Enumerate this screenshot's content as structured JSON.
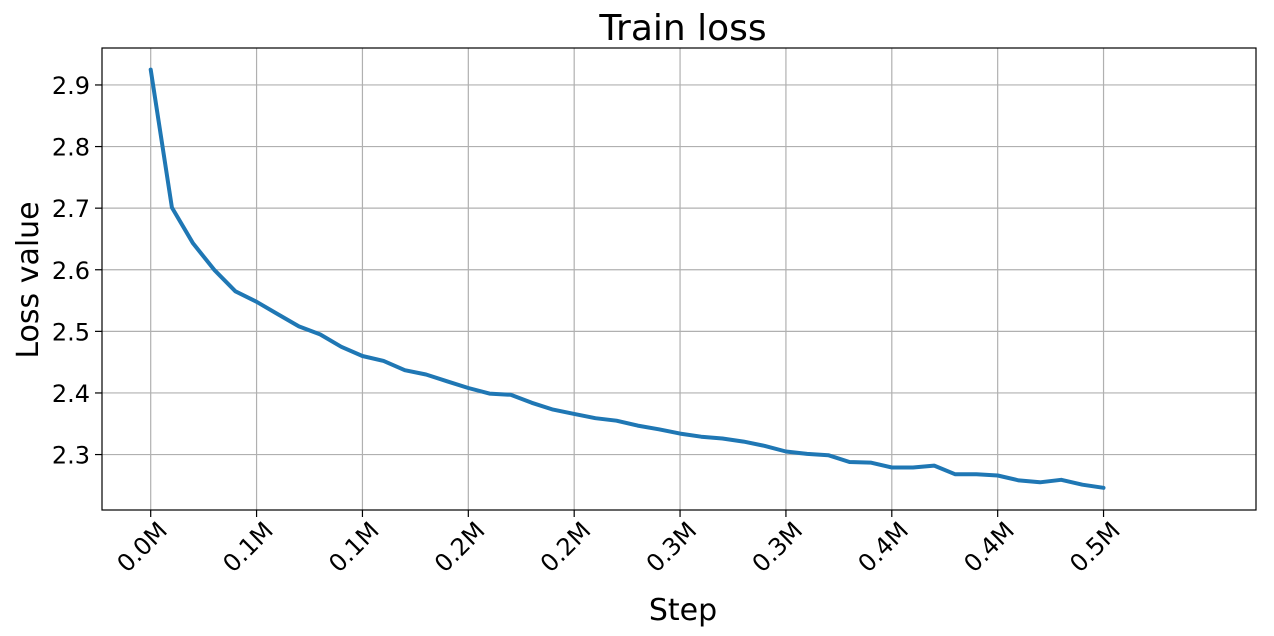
{
  "chart_data": {
    "type": "line",
    "title": "Train loss",
    "xlabel": "Step",
    "ylabel": "Loss value",
    "grid": true,
    "xlim": [
      -23000,
      522000
    ],
    "ylim": [
      2.21,
      2.96
    ],
    "x_ticks": [
      0,
      50000,
      100000,
      150000,
      200000,
      250000,
      300000,
      350000,
      400000,
      450000
    ],
    "x_tick_labels": [
      "0.0M",
      "0.1M",
      "0.1M",
      "0.2M",
      "0.2M",
      "0.3M",
      "0.3M",
      "0.4M",
      "0.4M",
      "0.5M"
    ],
    "y_ticks": [
      2.3,
      2.4,
      2.5,
      2.6,
      2.7,
      2.8,
      2.9
    ],
    "y_tick_labels": [
      "2.3",
      "2.4",
      "2.5",
      "2.6",
      "2.7",
      "2.8",
      "2.9"
    ],
    "series": [
      {
        "color": "#1f77b4",
        "x": [
          0,
          10000,
          20000,
          30000,
          40000,
          50000,
          60000,
          70000,
          80000,
          90000,
          100000,
          110000,
          120000,
          130000,
          140000,
          150000,
          160000,
          170000,
          180000,
          190000,
          200000,
          210000,
          220000,
          230000,
          240000,
          250000,
          260000,
          270000,
          280000,
          290000,
          300000,
          310000,
          320000,
          330000,
          340000,
          350000,
          360000,
          370000,
          380000,
          390000,
          400000,
          410000,
          420000,
          430000,
          440000,
          450000
        ],
        "y": [
          2.925,
          2.701,
          2.643,
          2.6,
          2.565,
          2.548,
          2.528,
          2.508,
          2.495,
          2.475,
          2.46,
          2.452,
          2.437,
          2.43,
          2.419,
          2.408,
          2.399,
          2.397,
          2.384,
          2.373,
          2.366,
          2.359,
          2.355,
          2.347,
          2.341,
          2.334,
          2.329,
          2.326,
          2.321,
          2.314,
          2.305,
          2.301,
          2.299,
          2.288,
          2.287,
          2.279,
          2.279,
          2.282,
          2.268,
          2.268,
          2.266,
          2.258,
          2.255,
          2.259,
          2.251,
          2.246
        ]
      }
    ]
  }
}
